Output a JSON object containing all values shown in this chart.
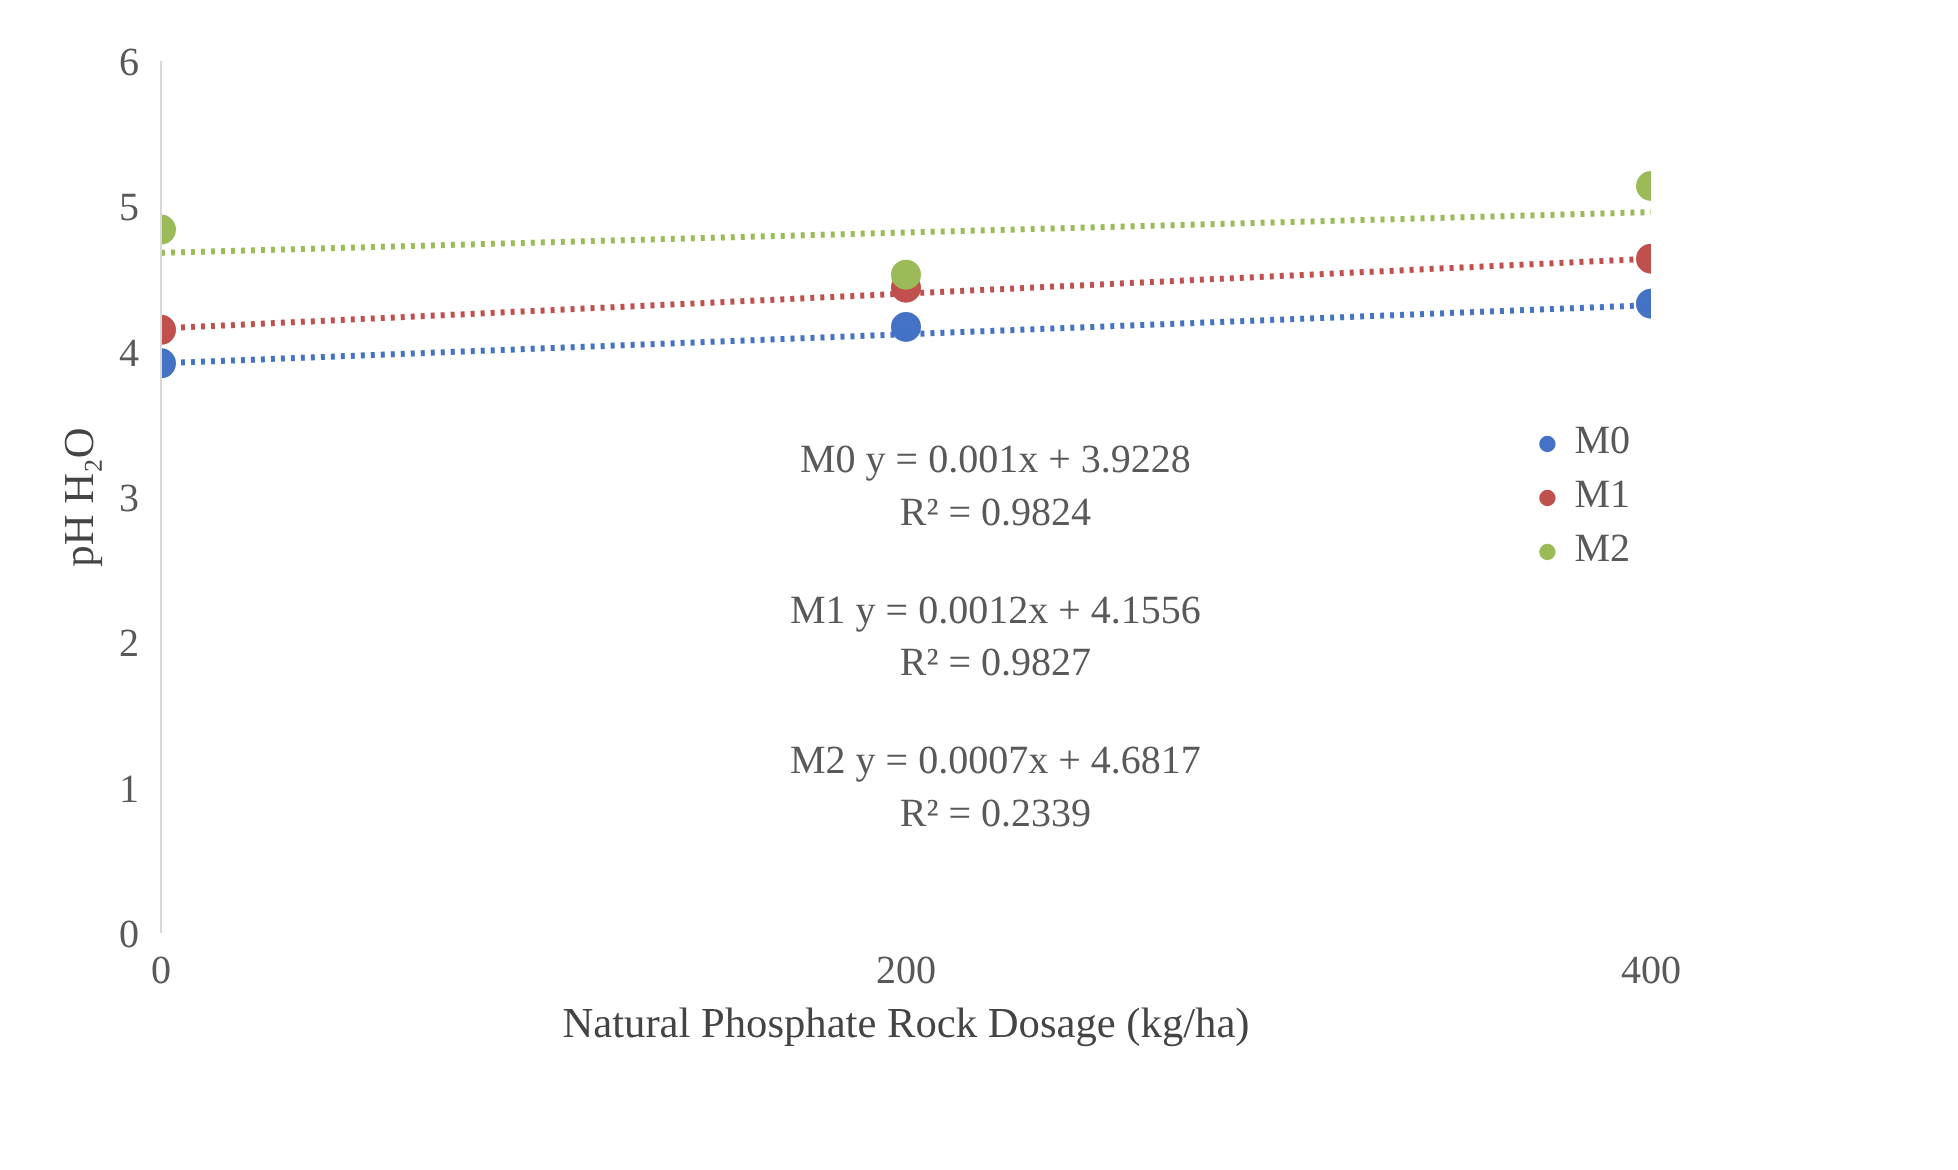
{
  "chart_data": {
    "type": "scatter",
    "xlabel": "Natural Phosphate Rock Dosage (kg/ha)",
    "ylabel": "pH H₂O",
    "x": [
      0,
      200,
      400
    ],
    "series": [
      {
        "name": "M0",
        "color": "#4472c4",
        "values": [
          3.92,
          4.17,
          4.33
        ],
        "marker": "circle"
      },
      {
        "name": "M1",
        "color": "#c0504d",
        "values": [
          4.15,
          4.44,
          4.64
        ],
        "marker": "circle"
      },
      {
        "name": "M2",
        "color": "#9bbb59",
        "values": [
          4.84,
          4.53,
          5.14
        ],
        "marker": "circle"
      },
      {
        "type": "line",
        "color": "#4472c4",
        "values": [
          3.92,
          4.12,
          4.32
        ],
        "line_style": "dotted",
        "marker": "none"
      },
      {
        "type": "line",
        "color": "#c0504d",
        "values": [
          4.16,
          4.4,
          4.64
        ],
        "line_style": "dotted",
        "marker": "none"
      },
      {
        "type": "line",
        "color": "#9bbb59",
        "values": [
          4.68,
          4.82,
          4.96
        ],
        "line_style": "dotted",
        "marker": "none"
      }
    ],
    "xlim": [
      0,
      400
    ],
    "xticks": [
      0,
      200,
      400
    ],
    "ylim": [
      0,
      6
    ],
    "yticks": [
      0,
      1,
      2,
      3,
      4,
      5,
      6
    ],
    "grid": false,
    "legend": "right",
    "annotations": [
      "M0 y = 0.001x + 3.9228",
      "R² = 0.9824",
      "M1 y = 0.0012x + 4.1556",
      "R² = 0.9827",
      "M2 y = 0.0007x + 4.6817",
      "R² = 0.2339"
    ]
  }
}
